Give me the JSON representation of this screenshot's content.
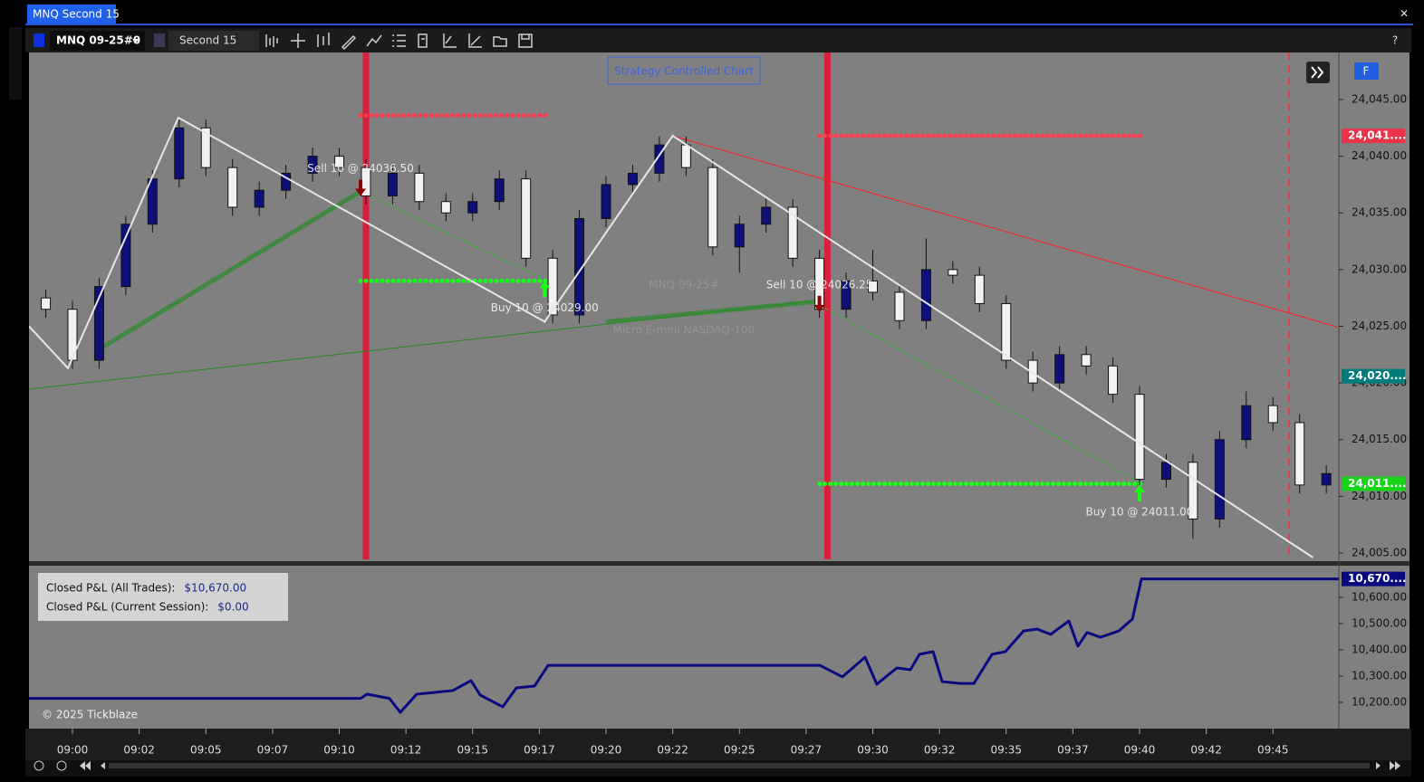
{
  "window": {
    "title": "MNQ Second 15",
    "close": "×"
  },
  "toolbar": {
    "symbol": "MNQ 09-25#0",
    "interval": "Second 15",
    "help": "?"
  },
  "chart_data": [
    {
      "type": "candlestick",
      "watermark": [
        "MNQ 09-25#",
        "Micro E-mini NASDAQ-100"
      ],
      "badge": "Strategy Controlled Chart",
      "flag": "F",
      "x": [
        -1,
        0,
        1,
        2,
        3,
        4,
        5,
        6,
        7,
        8,
        9,
        10,
        11,
        12,
        13,
        14,
        15,
        16,
        17,
        18,
        19,
        20,
        21,
        22,
        23,
        24,
        25,
        26,
        27,
        28,
        29,
        30,
        31,
        32,
        33,
        34,
        35,
        36,
        37,
        38,
        39,
        40,
        41,
        42,
        43,
        44,
        45,
        46,
        47
      ],
      "open": [
        24027.5,
        24026.5,
        24022.0,
        24028.5,
        24034.0,
        24038.0,
        24042.5,
        24039.0,
        24035.5,
        24037.0,
        24038.5,
        24040.0,
        24039.0,
        24036.5,
        24038.5,
        24036.0,
        24035.0,
        24036.0,
        24038.0,
        24031.0,
        24026.0,
        24034.5,
        24037.5,
        24038.5,
        24041.0,
        24039.0,
        24032.0,
        24034.0,
        24035.5,
        24031.0,
        24026.5,
        24029.0,
        24028.0,
        24025.5,
        24030.0,
        24029.5,
        24027.0,
        24022.0,
        24020.0,
        24022.5,
        24021.5,
        24019.0,
        24011.5,
        24013.0,
        24008.0,
        24015.0,
        24018.0,
        24016.5,
        24011.0
      ],
      "high": [
        24028.25,
        24027.25,
        24029.25,
        24034.75,
        24038.75,
        24043.25,
        24043.25,
        24039.75,
        24037.75,
        24039.25,
        24040.75,
        24040.75,
        24039.75,
        24039.25,
        24039.25,
        24036.75,
        24036.75,
        24038.75,
        24038.75,
        24031.75,
        24035.25,
        24038.25,
        24039.25,
        24041.75,
        24041.75,
        24039.75,
        24034.75,
        24036.25,
        24036.25,
        24031.75,
        24029.75,
        24031.75,
        24028.75,
        24032.75,
        24030.75,
        24030.25,
        24027.75,
        24022.75,
        24023.25,
        24023.25,
        24022.25,
        24019.75,
        24013.75,
        24013.75,
        24015.75,
        24019.25,
        24018.75,
        24017.25,
        24012.75
      ],
      "low": [
        24025.75,
        24021.25,
        24021.25,
        24027.75,
        24033.25,
        24037.25,
        24038.25,
        24034.75,
        24034.75,
        24036.25,
        24037.75,
        24038.25,
        24035.75,
        24035.75,
        24035.25,
        24034.25,
        24034.25,
        24035.25,
        24030.25,
        24025.25,
        24025.25,
        24033.75,
        24036.75,
        24037.75,
        24038.25,
        24031.25,
        24029.75,
        24033.25,
        24030.25,
        24025.75,
        24025.75,
        24027.25,
        24024.75,
        24024.75,
        24028.75,
        24026.25,
        24021.25,
        24019.25,
        24019.25,
        24020.75,
        24018.25,
        24010.75,
        24010.75,
        24006.25,
        24007.25,
        24014.25,
        24015.75,
        24010.25,
        24010.25
      ],
      "close": [
        24026.5,
        24022.0,
        24028.5,
        24034.0,
        24038.0,
        24042.5,
        24039.0,
        24035.5,
        24037.0,
        24038.5,
        24040.0,
        24039.0,
        24036.5,
        24038.5,
        24036.0,
        24035.0,
        24036.0,
        24038.0,
        24031.0,
        24026.0,
        24034.5,
        24037.5,
        24038.5,
        24041.0,
        24039.0,
        24032.0,
        24034.0,
        24035.5,
        24031.0,
        24026.5,
        24029.0,
        24028.0,
        24025.5,
        24030.0,
        24029.5,
        24027.0,
        24022.0,
        24020.0,
        24022.5,
        24021.5,
        24019.0,
        24011.5,
        24013.0,
        24008.0,
        24015.0,
        24018.0,
        24016.5,
        24011.0,
        24012.0
      ],
      "up_color": "#0c1078",
      "down_color": "#f2f2f2",
      "xlim": [
        -1.63,
        47.47
      ],
      "ylim": [
        24004.44,
        24049.15
      ],
      "yticks": [
        {
          "value": 24005,
          "label": "24,005.00"
        },
        {
          "value": 24010,
          "label": "24,010.00"
        },
        {
          "value": 24015,
          "label": "24,015.00"
        },
        {
          "value": 24020,
          "label": "24,020.00"
        },
        {
          "value": 24025,
          "label": "24,025.00"
        },
        {
          "value": 24030,
          "label": "24,030.00"
        },
        {
          "value": 24035,
          "label": "24,035.00"
        },
        {
          "value": 24040,
          "label": "24,040.00"
        },
        {
          "value": 24045,
          "label": "24,045.00"
        }
      ],
      "price_tags": [
        {
          "value": 24041.8,
          "label": "24,041....",
          "color": "#e8334a"
        },
        {
          "value": 24020.6,
          "label": "24,020....",
          "color": "#007b7b"
        },
        {
          "value": 24011.1,
          "label": "24,011....",
          "color": "#18d418"
        }
      ],
      "zigzag": {
        "color": "#e6e6e6",
        "x": [
          -1.63,
          -0.17,
          3.97,
          17.7,
          22.5,
          46.5
        ],
        "y": [
          24025.0,
          24021.3,
          24043.4,
          24025.4,
          24041.8,
          24004.6
        ]
      },
      "lines": [
        {
          "color": "#ff2020",
          "width": 1,
          "dash": false,
          "x": [
            22.5,
            47.47
          ],
          "y": [
            24041.8,
            24024.9
          ]
        },
        {
          "color": "#1f8a1f",
          "width": 1,
          "dash": false,
          "x": [
            -1.63,
            27.6
          ],
          "y": [
            24019.45,
            24027.2
          ]
        },
        {
          "color": "#2e8b2e",
          "width": 5,
          "dash": false,
          "x": [
            1.02,
            10.8
          ],
          "y": [
            24023.0,
            24036.9
          ]
        },
        {
          "color": "#2e8b2e",
          "width": 5,
          "dash": false,
          "x": [
            20.0,
            28.0
          ],
          "y": [
            24025.4,
            24027.2
          ]
        },
        {
          "color": "#22cc22",
          "width": 1,
          "dash": true,
          "x": [
            10.8,
            17.8
          ],
          "y": [
            24036.9,
            24029.0
          ]
        },
        {
          "color": "#22cc22",
          "width": 1,
          "dash": true,
          "x": [
            28.2,
            40.1
          ],
          "y": [
            24026.6,
            24011.1
          ]
        }
      ],
      "levels": [
        {
          "color": "#ff3b4e",
          "price": 24043.6,
          "x": [
            10.8,
            17.8
          ]
        },
        {
          "color": "#1aff1a",
          "price": 24029.0,
          "x": [
            10.8,
            17.8
          ]
        },
        {
          "color": "#ff3b4e",
          "price": 24041.8,
          "x": [
            28.0,
            40.1
          ]
        },
        {
          "color": "#1aff1a",
          "price": 24011.1,
          "x": [
            28.0,
            40.1
          ]
        }
      ],
      "sessions": [
        {
          "color": "#d8203c",
          "x": 11.0
        },
        {
          "color": "#d8203c",
          "x": 28.3
        }
      ],
      "markers": [
        {
          "color": "#e8334a",
          "x": 45.6
        }
      ],
      "trades": [
        {
          "label": "Sell 10 @ 24036.50",
          "side": "sell",
          "x": 10.8,
          "price": 24036.5
        },
        {
          "label": "Buy 10 @ 24029.00",
          "side": "buy",
          "x": 17.7,
          "price": 24029.0
        },
        {
          "label": "Sell 10 @ 24026.25",
          "side": "sell",
          "x": 28.0,
          "price": 24026.25
        },
        {
          "label": "Buy 10 @ 24011.00",
          "side": "buy",
          "x": 40.0,
          "price": 24011.0
        }
      ]
    },
    {
      "type": "line",
      "xlim": [
        -1.63,
        47.47
      ],
      "ylim": [
        10100,
        10717
      ],
      "yticks": [
        {
          "value": 10200,
          "label": "10,200.00"
        },
        {
          "value": 10300,
          "label": "10,300.00"
        },
        {
          "value": 10400,
          "label": "10,400.00"
        },
        {
          "value": 10500,
          "label": "10,500.00"
        },
        {
          "value": 10600,
          "label": "10,600.00"
        }
      ],
      "xticks": [
        {
          "value": 0,
          "label": "09:00"
        },
        {
          "value": 2.5,
          "label": "09:02"
        },
        {
          "value": 5,
          "label": "09:05"
        },
        {
          "value": 7.5,
          "label": "09:07"
        },
        {
          "value": 10,
          "label": "09:10"
        },
        {
          "value": 12.5,
          "label": "09:12"
        },
        {
          "value": 15,
          "label": "09:15"
        },
        {
          "value": 17.5,
          "label": "09:17"
        },
        {
          "value": 20,
          "label": "09:20"
        },
        {
          "value": 22.5,
          "label": "09:22"
        },
        {
          "value": 25,
          "label": "09:25"
        },
        {
          "value": 27.5,
          "label": "09:27"
        },
        {
          "value": 30,
          "label": "09:30"
        },
        {
          "value": 32.5,
          "label": "09:32"
        },
        {
          "value": 35,
          "label": "09:35"
        },
        {
          "value": 37.5,
          "label": "09:37"
        },
        {
          "value": 40,
          "label": "09:40"
        },
        {
          "value": 42.5,
          "label": "09:42"
        },
        {
          "value": 45,
          "label": "09:45"
        }
      ],
      "series": [
        {
          "color": "#0a0a80",
          "x": [
            -1.63,
            10.8,
            11.04,
            11.88,
            12.29,
            12.9,
            13.58,
            14.26,
            14.94,
            15.28,
            16.13,
            16.64,
            17.32,
            17.83,
            28.01,
            28.86,
            29.71,
            30.15,
            30.9,
            31.41,
            31.75,
            32.26,
            32.6,
            33.28,
            33.79,
            34.47,
            34.97,
            35.65,
            36.16,
            36.67,
            37.35,
            37.69,
            38.03,
            38.54,
            39.22,
            39.73,
            40.07,
            47.47
          ],
          "values": [
            10215,
            10215,
            10231,
            10215,
            10162,
            10231,
            10238,
            10245,
            10283,
            10228,
            10183,
            10255,
            10262,
            10341,
            10341,
            10297,
            10372,
            10269,
            10331,
            10324,
            10383,
            10393,
            10279,
            10272,
            10272,
            10383,
            10393,
            10472,
            10479,
            10459,
            10510,
            10414,
            10466,
            10448,
            10472,
            10517,
            10670,
            10670
          ]
        }
      ],
      "price_tag": {
        "value": 10670,
        "label": "10,670....",
        "color": "#0a0a80"
      },
      "summary": [
        {
          "label": "Closed P&L (All Trades):",
          "value": "$10,670.00"
        },
        {
          "label": "Closed P&L (Current Session):",
          "value": "$0.00"
        }
      ],
      "copyright": "© 2025 Tickblaze"
    }
  ]
}
